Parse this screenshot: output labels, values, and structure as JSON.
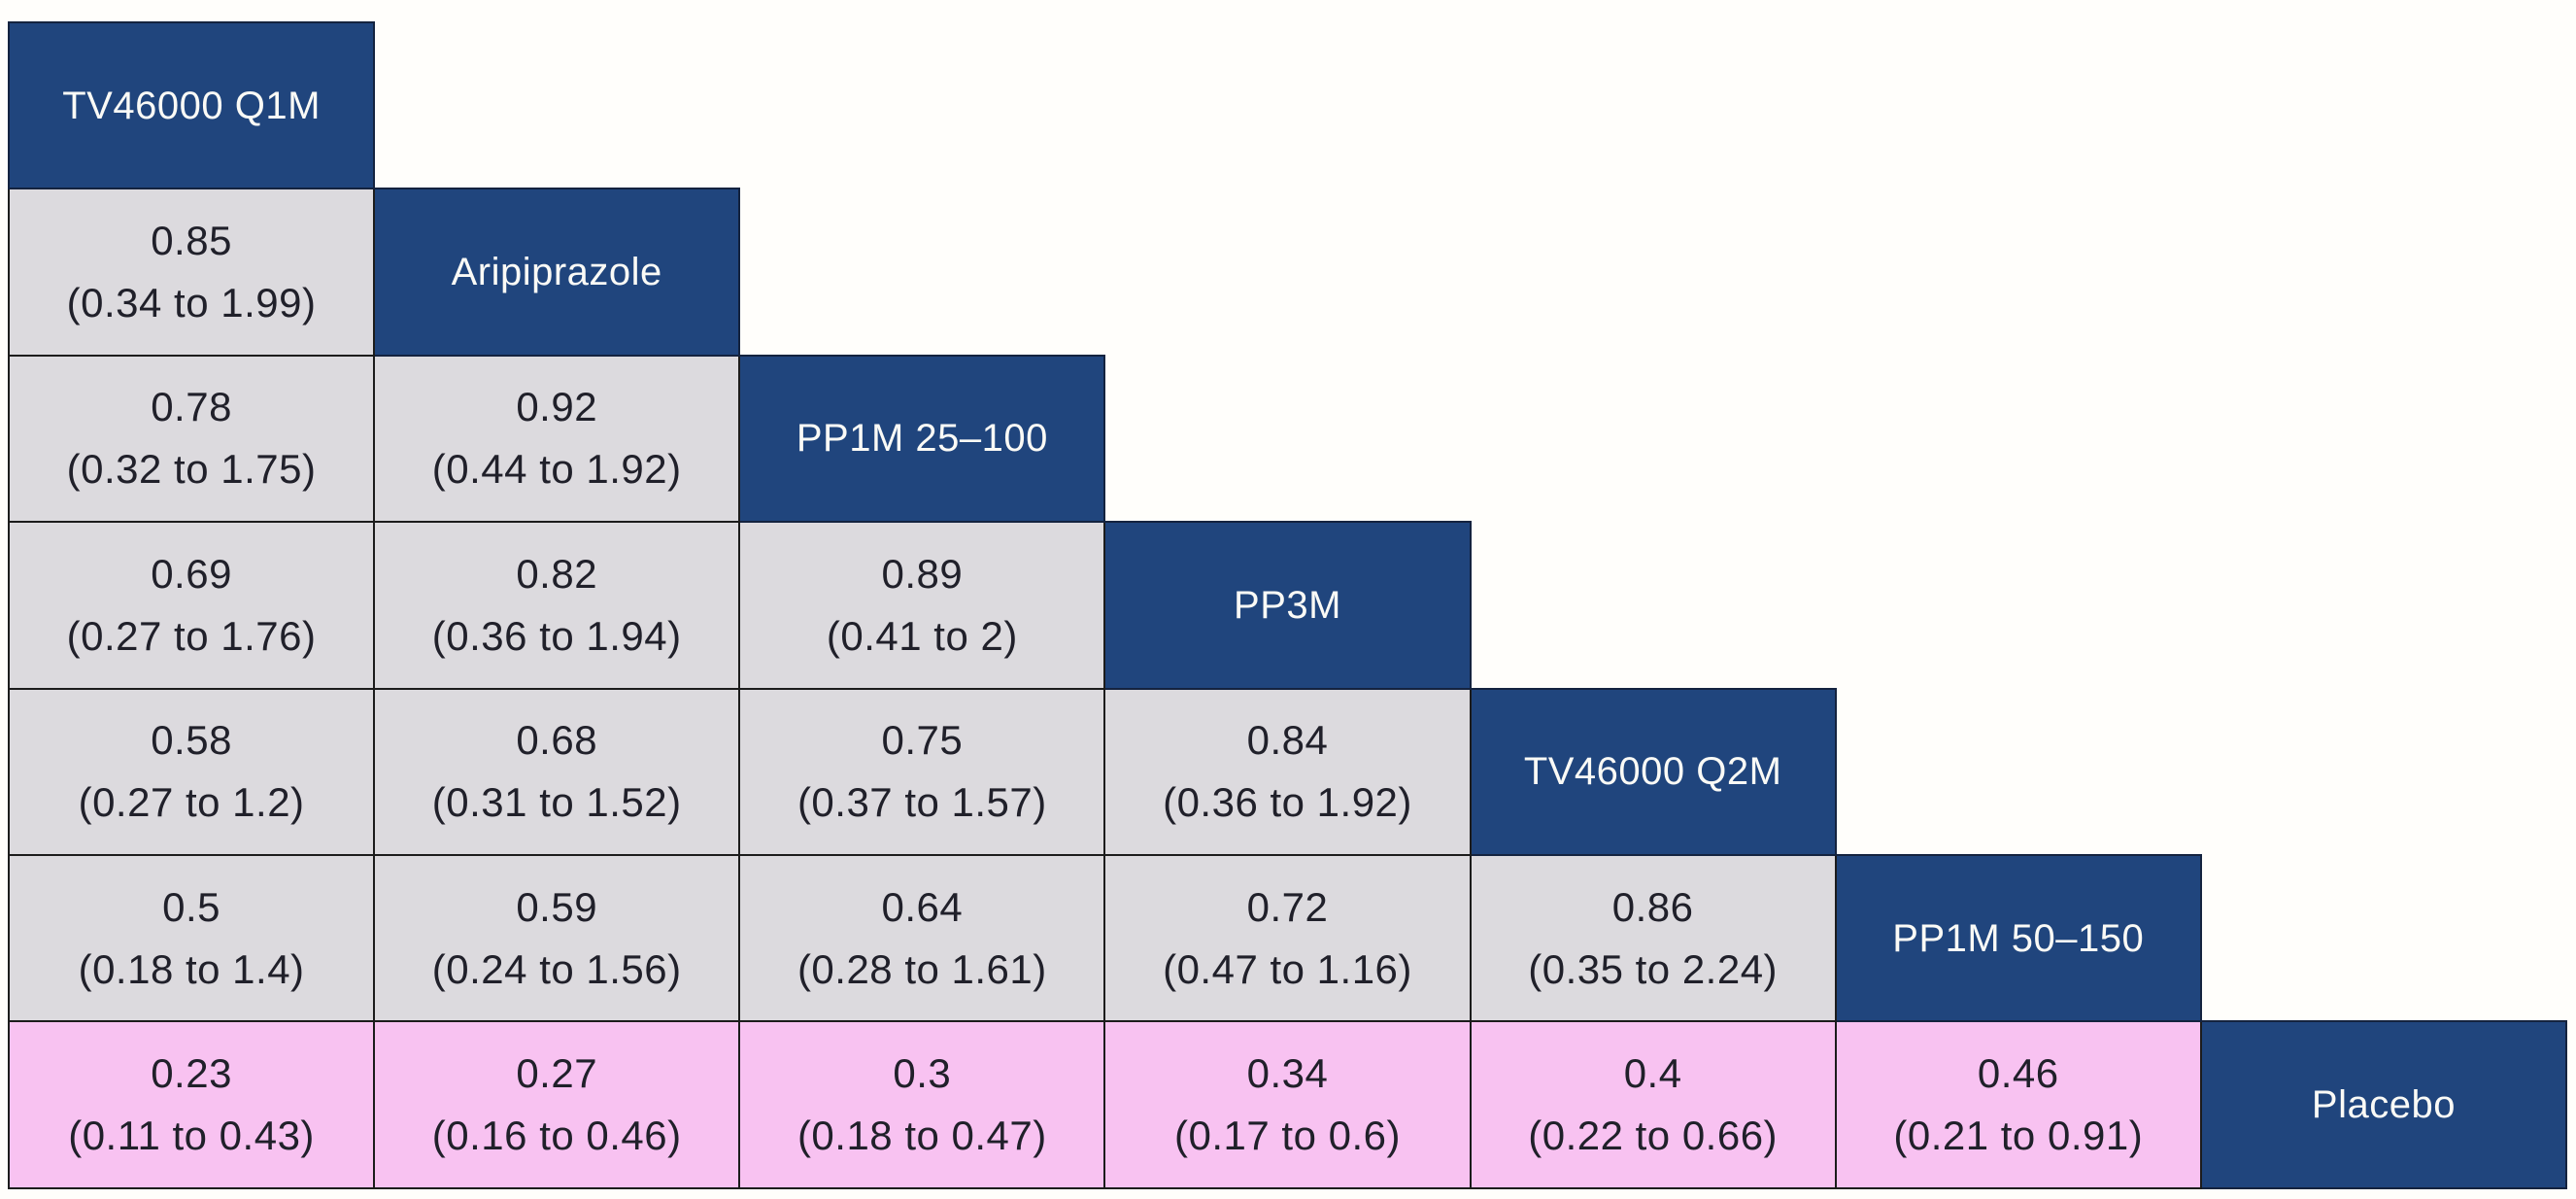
{
  "palette": {
    "treatment_header_bg": "#20457d",
    "estimate_bg": "#dcdade",
    "significant_bg": "#f8c2f1",
    "grid_border": "#1c1c1c",
    "header_text": "#fafaf6",
    "cell_text": "#20202a",
    "page_bg": "#fffefb"
  },
  "league": {
    "rows": [
      {
        "cells": [
          {
            "type": "treatment",
            "label": "TV46000 Q1M"
          }
        ]
      },
      {
        "cells": [
          {
            "type": "estimate",
            "estimate": "0.85",
            "ci": "(0.34 to 1.99)"
          },
          {
            "type": "treatment",
            "label": "Aripiprazole"
          }
        ]
      },
      {
        "cells": [
          {
            "type": "estimate",
            "estimate": "0.78",
            "ci": "(0.32 to 1.75)"
          },
          {
            "type": "estimate",
            "estimate": "0.92",
            "ci": "(0.44 to 1.92)"
          },
          {
            "type": "treatment",
            "label": "PP1M 25–100"
          }
        ]
      },
      {
        "cells": [
          {
            "type": "estimate",
            "estimate": "0.69",
            "ci": "(0.27 to 1.76)"
          },
          {
            "type": "estimate",
            "estimate": "0.82",
            "ci": "(0.36 to 1.94)"
          },
          {
            "type": "estimate",
            "estimate": "0.89",
            "ci": "(0.41 to 2)"
          },
          {
            "type": "treatment",
            "label": "PP3M"
          }
        ]
      },
      {
        "cells": [
          {
            "type": "estimate",
            "estimate": "0.58",
            "ci": "(0.27 to 1.2)"
          },
          {
            "type": "estimate",
            "estimate": "0.68",
            "ci": "(0.31 to 1.52)"
          },
          {
            "type": "estimate",
            "estimate": "0.75",
            "ci": "(0.37 to 1.57)"
          },
          {
            "type": "estimate",
            "estimate": "0.84",
            "ci": "(0.36 to 1.92)"
          },
          {
            "type": "treatment",
            "label": "TV46000 Q2M"
          }
        ]
      },
      {
        "cells": [
          {
            "type": "estimate",
            "estimate": "0.5",
            "ci": "(0.18 to 1.4)"
          },
          {
            "type": "estimate",
            "estimate": "0.59",
            "ci": "(0.24 to 1.56)"
          },
          {
            "type": "estimate",
            "estimate": "0.64",
            "ci": "(0.28 to 1.61)"
          },
          {
            "type": "estimate",
            "estimate": "0.72",
            "ci": "(0.47 to 1.16)"
          },
          {
            "type": "estimate",
            "estimate": "0.86",
            "ci": "(0.35 to 2.24)"
          },
          {
            "type": "treatment",
            "label": "PP1M 50–150"
          }
        ]
      },
      {
        "cells": [
          {
            "type": "estimate",
            "significant": true,
            "estimate": "0.23",
            "ci": "(0.11 to 0.43)"
          },
          {
            "type": "estimate",
            "significant": true,
            "estimate": "0.27",
            "ci": "(0.16 to 0.46)"
          },
          {
            "type": "estimate",
            "significant": true,
            "estimate": "0.3",
            "ci": "(0.18 to 0.47)"
          },
          {
            "type": "estimate",
            "significant": true,
            "estimate": "0.34",
            "ci": "(0.17 to 0.6)"
          },
          {
            "type": "estimate",
            "significant": true,
            "estimate": "0.4",
            "ci": "(0.22 to 0.66)"
          },
          {
            "type": "estimate",
            "significant": true,
            "estimate": "0.46",
            "ci": "(0.21 to 0.91)"
          },
          {
            "type": "treatment",
            "label": "Placebo"
          }
        ]
      }
    ]
  },
  "chart_data": {
    "type": "table",
    "subtype": "network-meta-analysis-league-table",
    "layout": "lower-triangular matrix; diagonal cells (dark blue) name the treatments; each off-diagonal cell shows estimate (95% CI); bottom pink row = comparisons vs Placebo where CI excludes 1",
    "treatments": [
      "TV46000 Q1M",
      "Aripiprazole",
      "PP1M 25–100",
      "PP3M",
      "TV46000 Q2M",
      "PP1M 50–150",
      "Placebo"
    ],
    "cell_format": "estimate (lower to upper)",
    "comparisons": [
      {
        "row_treatment": "Aripiprazole",
        "col_treatment": "TV46000 Q1M",
        "estimate": 0.85,
        "lower": 0.34,
        "upper": 1.99,
        "highlighted": false
      },
      {
        "row_treatment": "PP1M 25–100",
        "col_treatment": "TV46000 Q1M",
        "estimate": 0.78,
        "lower": 0.32,
        "upper": 1.75,
        "highlighted": false
      },
      {
        "row_treatment": "PP1M 25–100",
        "col_treatment": "Aripiprazole",
        "estimate": 0.92,
        "lower": 0.44,
        "upper": 1.92,
        "highlighted": false
      },
      {
        "row_treatment": "PP3M",
        "col_treatment": "TV46000 Q1M",
        "estimate": 0.69,
        "lower": 0.27,
        "upper": 1.76,
        "highlighted": false
      },
      {
        "row_treatment": "PP3M",
        "col_treatment": "Aripiprazole",
        "estimate": 0.82,
        "lower": 0.36,
        "upper": 1.94,
        "highlighted": false
      },
      {
        "row_treatment": "PP3M",
        "col_treatment": "PP1M 25–100",
        "estimate": 0.89,
        "lower": 0.41,
        "upper": 2,
        "highlighted": false
      },
      {
        "row_treatment": "TV46000 Q2M",
        "col_treatment": "TV46000 Q1M",
        "estimate": 0.58,
        "lower": 0.27,
        "upper": 1.2,
        "highlighted": false
      },
      {
        "row_treatment": "TV46000 Q2M",
        "col_treatment": "Aripiprazole",
        "estimate": 0.68,
        "lower": 0.31,
        "upper": 1.52,
        "highlighted": false
      },
      {
        "row_treatment": "TV46000 Q2M",
        "col_treatment": "PP1M 25–100",
        "estimate": 0.75,
        "lower": 0.37,
        "upper": 1.57,
        "highlighted": false
      },
      {
        "row_treatment": "TV46000 Q2M",
        "col_treatment": "PP3M",
        "estimate": 0.84,
        "lower": 0.36,
        "upper": 1.92,
        "highlighted": false
      },
      {
        "row_treatment": "PP1M 50–150",
        "col_treatment": "TV46000 Q1M",
        "estimate": 0.5,
        "lower": 0.18,
        "upper": 1.4,
        "highlighted": false
      },
      {
        "row_treatment": "PP1M 50–150",
        "col_treatment": "Aripiprazole",
        "estimate": 0.59,
        "lower": 0.24,
        "upper": 1.56,
        "highlighted": false
      },
      {
        "row_treatment": "PP1M 50–150",
        "col_treatment": "PP1M 25–100",
        "estimate": 0.64,
        "lower": 0.28,
        "upper": 1.61,
        "highlighted": false
      },
      {
        "row_treatment": "PP1M 50–150",
        "col_treatment": "PP3M",
        "estimate": 0.72,
        "lower": 0.47,
        "upper": 1.16,
        "highlighted": false
      },
      {
        "row_treatment": "PP1M 50–150",
        "col_treatment": "TV46000 Q2M",
        "estimate": 0.86,
        "lower": 0.35,
        "upper": 2.24,
        "highlighted": false
      },
      {
        "row_treatment": "Placebo",
        "col_treatment": "TV46000 Q1M",
        "estimate": 0.23,
        "lower": 0.11,
        "upper": 0.43,
        "highlighted": true
      },
      {
        "row_treatment": "Placebo",
        "col_treatment": "Aripiprazole",
        "estimate": 0.27,
        "lower": 0.16,
        "upper": 0.46,
        "highlighted": true
      },
      {
        "row_treatment": "Placebo",
        "col_treatment": "PP1M 25–100",
        "estimate": 0.3,
        "lower": 0.18,
        "upper": 0.47,
        "highlighted": true
      },
      {
        "row_treatment": "Placebo",
        "col_treatment": "PP3M",
        "estimate": 0.34,
        "lower": 0.17,
        "upper": 0.6,
        "highlighted": true
      },
      {
        "row_treatment": "Placebo",
        "col_treatment": "TV46000 Q2M",
        "estimate": 0.4,
        "lower": 0.22,
        "upper": 0.66,
        "highlighted": true
      },
      {
        "row_treatment": "Placebo",
        "col_treatment": "PP1M 50–150",
        "estimate": 0.46,
        "lower": 0.21,
        "upper": 0.91,
        "highlighted": true
      }
    ]
  }
}
